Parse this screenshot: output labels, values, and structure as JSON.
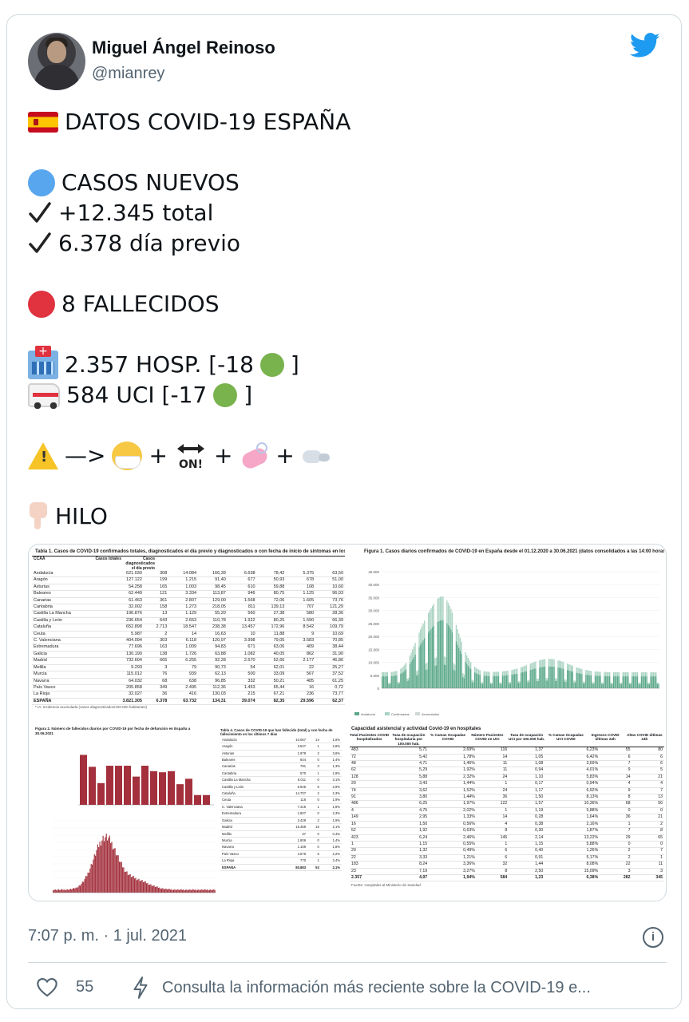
{
  "author": {
    "name": "Miguel Ángel Reinoso",
    "handle": "@mianrey"
  },
  "tweet": {
    "title": "DATOS COVID-19 ESPAÑA",
    "new_cases_label": "CASOS NUEVOS",
    "total_line": "+12.345 total",
    "prev_day_line": "6.378 día previo",
    "deaths_line": "8 FALLECIDOS",
    "hosp_line": "2.357 HOSP. [-18",
    "uci_line": "584 UCI [-17",
    "close_bracket": "]",
    "arrow": "—>",
    "plus": "+",
    "on_label": "ON!",
    "thread_label": "HILO"
  },
  "media": {
    "table1_title": "Tabla 1. Casos de COVID-19 confirmados totales, diagnosticados el día previo y diagnosticados o con fecha de inicio de síntomas en los últimos 14 y 7 días",
    "table1_headers": [
      "CCAA",
      "Casos totales",
      "Casos diagnosticados el día previo",
      "Nº",
      "IA*",
      "Nº",
      "IA*",
      "Nº",
      "IA*"
    ],
    "table1_rows": [
      [
        "Andalucía",
        "621.030",
        "308",
        "14.084",
        "166,39",
        "6.638",
        "78,42",
        "5.375",
        "63,50"
      ],
      [
        "Aragón",
        "127.122",
        "199",
        "1.215",
        "91,40",
        "677",
        "50,93",
        "678",
        "51,00"
      ],
      [
        "Asturias",
        "54.258",
        "165",
        "1.003",
        "98,45",
        "610",
        "59,88",
        "108",
        "10,60"
      ],
      [
        "Baleares",
        "62.449",
        "121",
        "3.334",
        "113,87",
        "946",
        "80,75",
        "1.125",
        "96,03"
      ],
      [
        "Canarias",
        "61.463",
        "361",
        "2.807",
        "129,00",
        "1.568",
        "72,06",
        "1.605",
        "73,76"
      ],
      [
        "Cantabria",
        "32.002",
        "158",
        "1.273",
        "218,05",
        "811",
        "139,13",
        "707",
        "121,29"
      ],
      [
        "Castilla La Mancha",
        "196.876",
        "13",
        "1.129",
        "55,20",
        "560",
        "27,38",
        "580",
        "28,36"
      ],
      [
        "Castilla y León",
        "236.654",
        "643",
        "2.653",
        "110,78",
        "1.922",
        "80,25",
        "1.590",
        "66,39"
      ],
      [
        "Cataluña",
        "652.898",
        "2.713",
        "18.547",
        "238,38",
        "13.457",
        "172,96",
        "8.542",
        "109,79"
      ],
      [
        "Ceuta",
        "5.987",
        "2",
        "14",
        "16,63",
        "10",
        "11,88",
        "9",
        "10,69"
      ],
      [
        "C. Valenciana",
        "404.094",
        "303",
        "6.118",
        "120,97",
        "3.998",
        "79,05",
        "3.583",
        "70,85"
      ],
      [
        "Extremadura",
        "77.696",
        "163",
        "1.009",
        "94,83",
        "671",
        "63,06",
        "409",
        "38,44"
      ],
      [
        "Galicia",
        "130.190",
        "138",
        "1.726",
        "63,88",
        "1.082",
        "40,05",
        "862",
        "31,90"
      ],
      [
        "Madrid",
        "732.604",
        "665",
        "6.255",
        "92,28",
        "2.570",
        "52,66",
        "2.177",
        "46,86"
      ],
      [
        "Melilla",
        "9.293",
        "3",
        "79",
        "90,73",
        "54",
        "62,01",
        "22",
        "25,27"
      ],
      [
        "Murcia",
        "115.012",
        "76",
        "939",
        "62,13",
        "500",
        "33,09",
        "567",
        "37,52"
      ],
      [
        "Navarra",
        "64.032",
        "68",
        "638",
        "96,85",
        "332",
        "50,21",
        "405",
        "61,25"
      ],
      [
        "País Vasco",
        "205.858",
        "349",
        "2.495",
        "112,36",
        "1.453",
        "65,44",
        "16",
        "0,72"
      ],
      [
        "La Rioja",
        "32.027",
        "36",
        "416",
        "130,03",
        "215",
        "67,21",
        "236",
        "73,77"
      ]
    ],
    "table1_total": [
      "ESPAÑA",
      "3.821.305",
      "6.378",
      "63.732",
      "134,31",
      "39.074",
      "82,35",
      "29.596",
      "62,37"
    ],
    "table1_footnote": "* IA: Incidencia acumulada (casos diagnosticados/100.000 habitantes)",
    "figure1_title": "Figura 1. Casos diarios confirmados de COVID-19 en España desde el 01.12.2020 a 30.06.2021 (datos consolidados a las 14:00 horas del 01.07.2021)",
    "figure1_yticks": [
      "45.000",
      "40.000",
      "35.000",
      "30.000",
      "25.000",
      "20.000",
      "15.000",
      "10.000",
      "5.000",
      "0"
    ],
    "figure1_legend": [
      "Andalucía",
      "Confirmados",
      "Acumulados"
    ],
    "figure2_title": "Figura 2. Número de fallecidos diarios por COVID-19 por fecha de defunción en España a 30.06.2021",
    "table4_title": "Tabla 4. Casos de COVID-19 que han fallecido (total) y con fecha de fallecimiento en los últimos 7 días",
    "table4_rows": [
      [
        "Andalucía",
        "10.067",
        "14",
        "1,6%"
      ],
      [
        "Aragón",
        "3.547",
        "1",
        "2,8%"
      ],
      [
        "Asturias",
        "1.978",
        "2",
        "3,6%"
      ],
      [
        "Baleares",
        "844",
        "0",
        "1,4%"
      ],
      [
        "Canarias",
        "791",
        "3",
        "1,3%"
      ],
      [
        "Cantabria",
        "570",
        "1",
        "1,8%"
      ],
      [
        "Castilla La Mancha",
        "6.011",
        "0",
        "3,1%"
      ],
      [
        "Castilla y León",
        "6.925",
        "6",
        "2,9%"
      ],
      [
        "Cataluña",
        "14.707",
        "2",
        "2,3%"
      ],
      [
        "Ceuta",
        "116",
        "0",
        "1,9%"
      ],
      [
        "C. Valenciana",
        "7.416",
        "1",
        "1,8%"
      ],
      [
        "Extremadura",
        "1.807",
        "0",
        "2,3%"
      ],
      [
        "Galicia",
        "2.429",
        "2",
        "1,9%"
      ],
      [
        "Madrid",
        "15.459",
        "16",
        "2,1%"
      ],
      [
        "Melilla",
        "37",
        "0",
        "0,4%"
      ],
      [
        "Murcia",
        "1.606",
        "0",
        "1,4%"
      ],
      [
        "Navarra",
        "1.169",
        "0",
        "1,8%"
      ],
      [
        "País Vasco",
        "4.579",
        "5",
        "2,2%"
      ],
      [
        "La Rioja",
        "770",
        "1",
        "2,4%"
      ]
    ],
    "table4_total": [
      "ESPAÑA",
      "80.883",
      "53",
      "2,1%"
    ],
    "hosp_title": "Capacidad asistencial y actividad Covid-19 en hospitales",
    "hosp_headers": [
      "Total Pacientes COVID hospitalizados",
      "Tasa de ocupación hospitalaria por 100.000 hab.",
      "% Camas Ocupadas COVID",
      "Número Pacientes COVID en UCI",
      "Tasa de ocupación UCI por 100.000 hab.",
      "% Camas Ocupadas UCI COVID",
      "Ingresos COVID últimas 24h",
      "Altas COVID últimas 24h"
    ],
    "hosp_rows": [
      [
        "483",
        "5,71",
        "2,69%",
        "116",
        "1,37",
        "6,23%",
        "55",
        "80"
      ],
      [
        "72",
        "5,42",
        "1,78%",
        "14",
        "1,05",
        "6,42%",
        "6",
        "6"
      ],
      [
        "48",
        "4,71",
        "1,46%",
        "11",
        "1,08",
        "3,69%",
        "7",
        "6"
      ],
      [
        "62",
        "5,29",
        "1,92%",
        "11",
        "0,94",
        "4,01%",
        "9",
        "5"
      ],
      [
        "128",
        "5,88",
        "2,32%",
        "24",
        "1,10",
        "5,83%",
        "14",
        "21"
      ],
      [
        "20",
        "3,43",
        "1,44%",
        "1",
        "0,17",
        "0,94%",
        "4",
        "4"
      ],
      [
        "74",
        "3,62",
        "1,52%",
        "24",
        "1,17",
        "6,92%",
        "9",
        "7"
      ],
      [
        "91",
        "3,80",
        "1,44%",
        "36",
        "1,50",
        "8,13%",
        "8",
        "13"
      ],
      [
        "486",
        "6,25",
        "1,97%",
        "122",
        "1,57",
        "10,36%",
        "68",
        "56"
      ],
      [
        "4",
        "4,75",
        "2,02%",
        "1",
        "1,19",
        "5,88%",
        "0",
        "0"
      ],
      [
        "149",
        "2,95",
        "1,33%",
        "14",
        "0,28",
        "1,64%",
        "36",
        "21"
      ],
      [
        "16",
        "1,50",
        "0,56%",
        "4",
        "0,38",
        "2,16%",
        "1",
        "2"
      ],
      [
        "52",
        "1,92",
        "0,63%",
        "8",
        "0,30",
        "1,87%",
        "7",
        "8"
      ],
      [
        "423",
        "6,24",
        "2,46%",
        "145",
        "2,14",
        "13,22%",
        "29",
        "65"
      ],
      [
        "1",
        "1,15",
        "0,55%",
        "1",
        "1,15",
        "5,88%",
        "0",
        "0"
      ],
      [
        "20",
        "1,32",
        "0,49%",
        "6",
        "0,40",
        "1,26%",
        "2",
        "7"
      ],
      [
        "22",
        "3,33",
        "1,21%",
        "6",
        "0,91",
        "5,17%",
        "2",
        "1"
      ],
      [
        "183",
        "8,24",
        "3,36%",
        "32",
        "1,44",
        "8,08%",
        "22",
        "11"
      ],
      [
        "23",
        "7,19",
        "3,27%",
        "8",
        "2,50",
        "15,09%",
        "3",
        "3"
      ]
    ],
    "hosp_total": [
      "2.357",
      "4,97",
      "1,94%",
      "584",
      "1,23",
      "6,38%",
      "282",
      "345"
    ],
    "hosp_footnote": "Fuente: Hospitales al Ministerio de Sanidad"
  },
  "meta": {
    "timestamp": "7:07 p. m. · 1 jul. 2021",
    "like_count": "55",
    "covid_info": "Consulta la información más reciente sobre la COVID-19 e..."
  },
  "colors": {
    "chart_green": "#5aa88a",
    "chart_light": "#a9d3c2",
    "bar_red": "#a3303c",
    "twitter_blue": "#1d9bf0"
  }
}
